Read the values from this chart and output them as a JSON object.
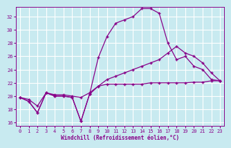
{
  "xlabel": "Windchill (Refroidissement éolien,°C)",
  "bg_color": "#c8eaf0",
  "grid_color": "#ffffff",
  "line_color": "#880088",
  "marker": "+",
  "xlim": [
    -0.5,
    23.5
  ],
  "ylim": [
    15.5,
    33.5
  ],
  "yticks": [
    16,
    18,
    20,
    22,
    24,
    26,
    28,
    30,
    32
  ],
  "xticks": [
    0,
    1,
    2,
    3,
    4,
    5,
    6,
    7,
    8,
    9,
    10,
    11,
    12,
    13,
    14,
    15,
    16,
    17,
    18,
    19,
    20,
    21,
    22,
    23
  ],
  "series": [
    {
      "comment": "flat/slow rise line - nearly straight from ~20 to ~22",
      "x": [
        0,
        1,
        2,
        3,
        4,
        5,
        6,
        7,
        8,
        9,
        10,
        11,
        12,
        13,
        14,
        15,
        16,
        17,
        18,
        19,
        20,
        21,
        22,
        23
      ],
      "y": [
        19.8,
        19.2,
        17.5,
        20.5,
        20.0,
        20.0,
        19.8,
        16.2,
        20.3,
        21.5,
        21.8,
        21.8,
        21.8,
        21.8,
        21.8,
        22.0,
        22.0,
        22.0,
        22.0,
        22.0,
        22.1,
        22.1,
        22.3,
        22.3
      ]
    },
    {
      "comment": "high peak line - rises sharply to ~33 at hour 15 then drops",
      "x": [
        0,
        1,
        2,
        3,
        4,
        5,
        6,
        7,
        8,
        9,
        10,
        11,
        12,
        13,
        14,
        15,
        16,
        17,
        18,
        19,
        20,
        21,
        22,
        23
      ],
      "y": [
        19.8,
        19.2,
        17.5,
        20.5,
        20.0,
        20.0,
        19.8,
        16.2,
        20.3,
        25.8,
        29.0,
        31.0,
        31.5,
        32.0,
        33.2,
        33.2,
        32.5,
        28.0,
        25.5,
        26.0,
        24.5,
        24.0,
        22.5,
        22.3
      ]
    },
    {
      "comment": "medium rise line - rises to ~26 at hour 20 then drops slightly",
      "x": [
        0,
        1,
        2,
        3,
        4,
        5,
        6,
        7,
        8,
        9,
        10,
        11,
        12,
        13,
        14,
        15,
        16,
        17,
        18,
        19,
        20,
        21,
        22,
        23
      ],
      "y": [
        19.8,
        19.5,
        18.5,
        20.5,
        20.2,
        20.2,
        20.0,
        19.8,
        20.5,
        21.5,
        22.5,
        23.0,
        23.5,
        24.0,
        24.5,
        25.0,
        25.5,
        26.5,
        27.5,
        26.5,
        26.0,
        25.0,
        23.5,
        22.3
      ]
    }
  ]
}
